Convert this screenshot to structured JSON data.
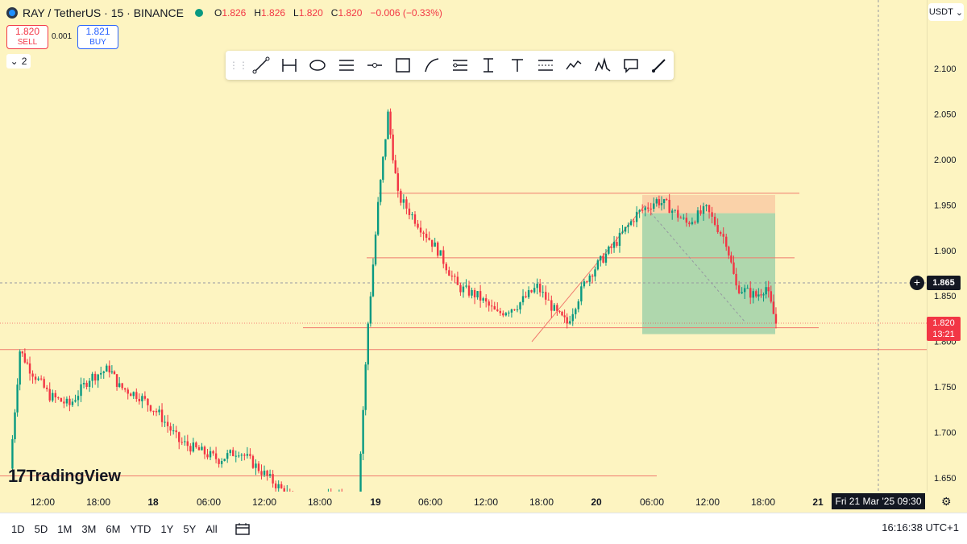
{
  "header": {
    "symbol_title": "RAY / TetherUS · 15 · BINANCE",
    "open_label": "O",
    "open": "1.826",
    "high_label": "H",
    "high": "1.826",
    "low_label": "L",
    "low": "1.820",
    "close_label": "C",
    "close": "1.820",
    "change": "−0.006 (−0.33%)",
    "status_color": "#089981"
  },
  "trade": {
    "sell_price": "1.820",
    "sell_label": "SELL",
    "spread": "0.001",
    "buy_price": "1.821",
    "buy_label": "BUY"
  },
  "layers": {
    "count": "2"
  },
  "toolbar": {
    "tools": [
      "trend-line-icon",
      "date-range-icon",
      "ellipse-icon",
      "parallel-channel-icon",
      "horizontal-ray-icon",
      "rectangle-icon",
      "curve-icon",
      "fib-retracement-icon",
      "price-range-icon",
      "text-icon",
      "date-price-range-icon",
      "path-icon",
      "pattern-icon",
      "callout-icon",
      "brush-icon"
    ]
  },
  "currency": {
    "label": "USDT"
  },
  "price_scale": {
    "ticks": [
      "2.100",
      "2.050",
      "2.000",
      "1.950",
      "1.900",
      "1.850",
      "1.800",
      "1.750",
      "1.700",
      "1.650"
    ],
    "crosshair_price": "1.865",
    "last_price": "1.820",
    "countdown": "13:21"
  },
  "time_scale": {
    "ticks": [
      "12:00",
      "18:00",
      "18",
      "06:00",
      "12:00",
      "18:00",
      "19",
      "06:00",
      "12:00",
      "18:00",
      "20",
      "06:00",
      "12:00",
      "18:00",
      "21"
    ],
    "crosshair_time": "Fri 21 Mar '25   09:30"
  },
  "bottom_bar": {
    "ranges": [
      "1D",
      "5D",
      "1M",
      "3M",
      "6M",
      "YTD",
      "1Y",
      "5Y",
      "All"
    ],
    "clock": "16:16:38 UTC+1"
  },
  "branding": {
    "logo_text": "TradingView"
  },
  "colors": {
    "background": "#fdf4c1",
    "up": "#089981",
    "down": "#f23645",
    "level_line": "#f07b6e",
    "profit_zone": "#9bd0a8",
    "loss_zone": "#f9c9a3"
  },
  "chart_data": {
    "type": "candlestick",
    "x_unit": "time (15 min candles)",
    "y_unit": "USDT",
    "ylim": [
      1.63,
      2.12
    ],
    "points": [
      {
        "t": "17 11:00",
        "c": 1.66
      },
      {
        "t": "17 12:00",
        "c": 1.79
      },
      {
        "t": "17 13:00",
        "c": 1.77
      },
      {
        "t": "17 15:00",
        "c": 1.74
      },
      {
        "t": "17 17:00",
        "c": 1.73
      },
      {
        "t": "17 19:00",
        "c": 1.76
      },
      {
        "t": "17 21:00",
        "c": 1.77
      },
      {
        "t": "17 22:00",
        "c": 1.75
      },
      {
        "t": "18 00:00",
        "c": 1.74
      },
      {
        "t": "18 02:00",
        "c": 1.72
      },
      {
        "t": "18 04:00",
        "c": 1.69
      },
      {
        "t": "18 06:00",
        "c": 1.68
      },
      {
        "t": "18 08:00",
        "c": 1.67
      },
      {
        "t": "18 10:00",
        "c": 1.68
      },
      {
        "t": "18 12:00",
        "c": 1.66
      },
      {
        "t": "18 14:00",
        "c": 1.64
      },
      {
        "t": "18 16:00",
        "c": 1.62
      },
      {
        "t": "18 22:00",
        "c": 1.63
      },
      {
        "t": "18 23:00",
        "c": 1.82
      },
      {
        "t": "19 00:00",
        "c": 1.95
      },
      {
        "t": "19 01:00",
        "c": 2.05
      },
      {
        "t": "19 02:00",
        "c": 1.96
      },
      {
        "t": "19 04:00",
        "c": 1.93
      },
      {
        "t": "19 06:00",
        "c": 1.9
      },
      {
        "t": "19 08:00",
        "c": 1.86
      },
      {
        "t": "19 10:00",
        "c": 1.85
      },
      {
        "t": "19 12:00",
        "c": 1.83
      },
      {
        "t": "19 14:00",
        "c": 1.84
      },
      {
        "t": "19 16:00",
        "c": 1.86
      },
      {
        "t": "19 18:00",
        "c": 1.83
      },
      {
        "t": "19 19:00",
        "c": 1.82
      },
      {
        "t": "19 21:00",
        "c": 1.87
      },
      {
        "t": "20 00:00",
        "c": 1.91
      },
      {
        "t": "20 02:00",
        "c": 1.94
      },
      {
        "t": "20 04:00",
        "c": 1.955
      },
      {
        "t": "20 05:00",
        "c": 1.95
      },
      {
        "t": "20 07:00",
        "c": 1.93
      },
      {
        "t": "20 09:00",
        "c": 1.945
      },
      {
        "t": "20 11:00",
        "c": 1.91
      },
      {
        "t": "20 12:00",
        "c": 1.86
      },
      {
        "t": "20 14:00",
        "c": 1.85
      },
      {
        "t": "20 15:00",
        "c": 1.86
      },
      {
        "t": "20 16:00",
        "c": 1.82
      }
    ],
    "levels": [
      1.963,
      1.892,
      1.815,
      1.791,
      1.652
    ],
    "long_position": {
      "entry": 1.941,
      "target": 1.808,
      "stop": 1.961
    }
  }
}
